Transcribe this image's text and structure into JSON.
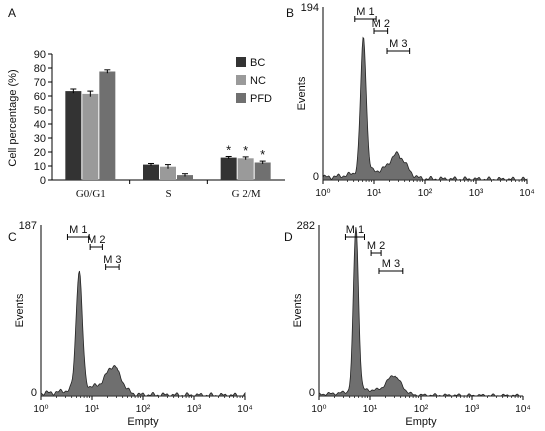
{
  "panels": {
    "A": {
      "letter": "A",
      "chart_data": {
        "type": "bar",
        "ylabel": "Cell percentage (%)",
        "ylim": [
          0,
          90
        ],
        "yticks": [
          "0",
          "10",
          "20",
          "30",
          "40",
          "50",
          "60",
          "70",
          "80",
          "90"
        ],
        "categories": [
          "G0/G1",
          "S",
          "G 2/M"
        ],
        "series": [
          {
            "name": "BC",
            "color": "#333333",
            "values": [
              63.5,
              11,
              16
            ],
            "errors": [
              1.5,
              0.8,
              0.8
            ]
          },
          {
            "name": "NC",
            "color": "#9a9a9a",
            "values": [
              61.5,
              9.5,
              15.5
            ],
            "errors": [
              2,
              1.5,
              1
            ]
          },
          {
            "name": "PFD",
            "color": "#707070",
            "values": [
              77.5,
              3.5,
              12.5
            ],
            "errors": [
              1.2,
              1,
              1
            ]
          }
        ],
        "significance_marker": "*",
        "significant": [
          [
            false,
            false,
            true
          ],
          [
            false,
            false,
            true
          ],
          [
            false,
            false,
            true
          ]
        ],
        "grid": false,
        "legend": "top-right"
      }
    },
    "histograms": [
      {
        "letter": "B",
        "ylabel": "Events",
        "ymax_label": "194",
        "zero_label": "0",
        "xlabel": "",
        "x_ticks": [
          "10⁰",
          "10¹",
          "10²",
          "10³",
          "10⁴"
        ],
        "gates": [
          {
            "label": "M 1",
            "range": [
              4.2,
              11
            ]
          },
          {
            "label": "M 2",
            "range": [
              10,
              18.5
            ]
          },
          {
            "label": "M 3",
            "range": [
              18,
              50
            ]
          }
        ],
        "chart_data": {
          "type": "area",
          "x_scale": "log",
          "xlim": [
            1,
            10000
          ],
          "ylim": [
            0,
            194
          ],
          "peaks": [
            {
              "center": 6.2,
              "height": 150,
              "width": 0.055
            },
            {
              "center": 30,
              "height": 25,
              "width": 0.16
            }
          ],
          "baseline": 3
        }
      },
      {
        "letter": "C",
        "ylabel": "Events",
        "ymax_label": "187",
        "zero_label": "0",
        "xlabel": "Empty",
        "x_ticks": [
          "10⁰",
          "10¹",
          "10²",
          "10³",
          "10⁴"
        ],
        "gates": [
          {
            "label": "M 1",
            "range": [
              3.3,
              8.8
            ]
          },
          {
            "label": "M 2",
            "range": [
              9.2,
              16
            ]
          },
          {
            "label": "M 3",
            "range": [
              18.5,
              34
            ]
          }
        ],
        "chart_data": {
          "type": "area",
          "x_scale": "log",
          "xlim": [
            1,
            10000
          ],
          "ylim": [
            0,
            187
          ],
          "peaks": [
            {
              "center": 5.6,
              "height": 128,
              "width": 0.06
            },
            {
              "center": 27,
              "height": 28,
              "width": 0.15
            }
          ],
          "baseline": 3
        }
      },
      {
        "letter": "D",
        "ylabel": "Events",
        "ymax_label": "282",
        "zero_label": "0",
        "xlabel": "Empty",
        "x_ticks": [
          "10⁰",
          "10¹",
          "10²",
          "10³",
          "10⁴"
        ],
        "gates": [
          {
            "label": "M 1",
            "range": [
              3.3,
              7.8
            ]
          },
          {
            "label": "M 2",
            "range": [
              10.5,
              16.5
            ]
          },
          {
            "label": "M 3",
            "range": [
              15,
              44
            ]
          }
        ],
        "chart_data": {
          "type": "area",
          "x_scale": "log",
          "xlim": [
            1,
            10000
          ],
          "ylim": [
            0,
            282
          ],
          "peaks": [
            {
              "center": 5.3,
              "height": 270,
              "width": 0.05
            },
            {
              "center": 30,
              "height": 30,
              "width": 0.14
            }
          ],
          "baseline": 3
        }
      }
    ]
  }
}
